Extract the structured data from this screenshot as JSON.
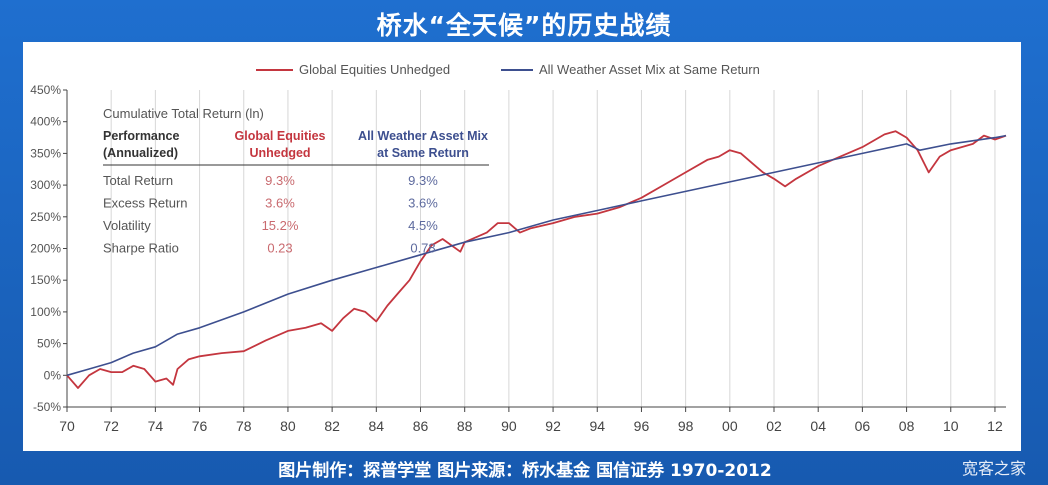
{
  "slide": {
    "title": "桥水“全天候”的历史战绩",
    "footer": "图片制作：探普学堂 图片来源：桥水基金 国信证券 1970-2012",
    "watermark": "宽客之家"
  },
  "colors": {
    "equities": "#c4363f",
    "all_weather": "#3d4f8f",
    "grid": "#d7d7d7",
    "axis": "#444444",
    "background": "#1a63bf"
  },
  "chart_data": {
    "type": "line",
    "title": "Cumulative Total Return (ln)",
    "legend": [
      "Global Equities Unhedged",
      "All Weather Asset Mix at Same Return"
    ],
    "legend_position": "top-center",
    "ylim": [
      -50,
      450
    ],
    "yticks": [
      -50,
      0,
      50,
      100,
      150,
      200,
      250,
      300,
      350,
      400,
      450
    ],
    "ytick_labels": [
      "-50%",
      "0%",
      "50%",
      "100%",
      "150%",
      "200%",
      "250%",
      "300%",
      "350%",
      "400%",
      "450%"
    ],
    "xlim": [
      1970,
      2012.5
    ],
    "xticks": [
      1970,
      1972,
      1974,
      1976,
      1978,
      1980,
      1982,
      1984,
      1986,
      1988,
      1990,
      1992,
      1994,
      1996,
      1998,
      2000,
      2002,
      2004,
      2006,
      2008,
      2010,
      2012
    ],
    "xtick_labels": [
      "70",
      "72",
      "74",
      "76",
      "78",
      "80",
      "82",
      "84",
      "86",
      "88",
      "90",
      "92",
      "94",
      "96",
      "98",
      "00",
      "02",
      "04",
      "06",
      "08",
      "10",
      "12"
    ],
    "grid": "vertical",
    "series": [
      {
        "name": "Global Equities Unhedged",
        "color": "#c4363f",
        "x": [
          1970,
          1970.5,
          1971,
          1971.5,
          1972,
          1972.5,
          1973,
          1973.5,
          1974,
          1974.5,
          1974.8,
          1975,
          1975.5,
          1976,
          1977,
          1978,
          1979,
          1980,
          1980.8,
          1981.5,
          1982,
          1982.5,
          1983,
          1983.5,
          1984,
          1984.5,
          1985,
          1985.5,
          1986,
          1986.5,
          1987,
          1987.8,
          1988,
          1989,
          1989.5,
          1990,
          1990.5,
          1991,
          1992,
          1993,
          1994,
          1995,
          1996,
          1997,
          1998,
          1999,
          1999.5,
          2000,
          2000.5,
          2001,
          2001.5,
          2002,
          2002.5,
          2003,
          2004,
          2005,
          2006,
          2007,
          2007.5,
          2008,
          2008.5,
          2009,
          2009.5,
          2010,
          2011,
          2011.5,
          2012,
          2012.5
        ],
        "y": [
          0,
          -20,
          0,
          10,
          5,
          5,
          15,
          10,
          -10,
          -5,
          -15,
          10,
          25,
          30,
          35,
          38,
          55,
          70,
          75,
          82,
          70,
          90,
          105,
          100,
          85,
          110,
          130,
          150,
          180,
          205,
          215,
          195,
          210,
          225,
          240,
          240,
          225,
          232,
          240,
          250,
          255,
          265,
          280,
          300,
          320,
          340,
          345,
          355,
          350,
          335,
          320,
          310,
          298,
          310,
          330,
          345,
          360,
          380,
          385,
          375,
          355,
          320,
          345,
          355,
          365,
          378,
          372,
          378
        ]
      },
      {
        "name": "All Weather Asset Mix at Same Return",
        "color": "#3d4f8f",
        "x": [
          1970,
          1971,
          1972,
          1973,
          1974,
          1975,
          1976,
          1978,
          1980,
          1982,
          1984,
          1986,
          1988,
          1990,
          1992,
          1994,
          1996,
          1998,
          2000,
          2002,
          2004,
          2006,
          2008,
          2008.6,
          2010,
          2012,
          2012.5
        ],
        "y": [
          0,
          10,
          20,
          35,
          45,
          65,
          75,
          100,
          128,
          150,
          170,
          190,
          210,
          225,
          245,
          260,
          275,
          290,
          305,
          320,
          335,
          350,
          365,
          355,
          365,
          375,
          378
        ]
      }
    ],
    "table": {
      "header": [
        "Performance\n(Annualized)",
        "Global Equities\nUnhedged",
        "All Weather Asset Mix\nat Same Return"
      ],
      "rows": [
        [
          "Total Return",
          "9.3%",
          "9.3%"
        ],
        [
          "Excess Return",
          "3.6%",
          "3.6%"
        ],
        [
          "Volatility",
          "15.2%",
          "4.5%"
        ],
        [
          "Sharpe Ratio",
          "0.23",
          "0.78"
        ]
      ]
    }
  }
}
